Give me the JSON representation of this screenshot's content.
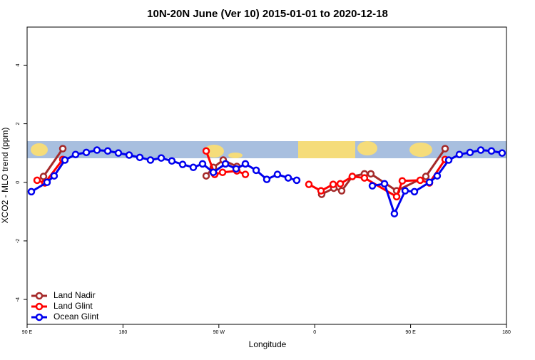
{
  "chart_data": {
    "type": "line",
    "title": "10N-20N June (Ver 10)   2015-01-01 to 2020-12-18",
    "x_label": "Longitude",
    "y_label": "XCO2 - MLO trend (ppm)",
    "xlim": [
      90,
      540
    ],
    "xticks": [
      {
        "value": 90,
        "label": "90 E"
      },
      180,
      {
        "value": 270,
        "label": "90 W"
      },
      {
        "value": 360,
        "label": "0"
      },
      {
        "value": 450,
        "label": "90 E"
      },
      {
        "value": 540,
        "label": "180"
      }
    ],
    "ylim": [
      -4.85,
      5.3
    ],
    "yticks": [
      -4,
      -2,
      0,
      2,
      4
    ],
    "legend": "bottomleft",
    "series": [
      {
        "name": "Land Nadir",
        "color": "#a52a2a",
        "x": [
          105.4,
          123.5,
          null,
          258.1,
          264.8,
          274.1,
          286.9,
          null,
          366.5,
          377.9,
          385.3,
          395.3,
          406.7,
          412.7,
          436.9,
          464.3,
          482.4
        ],
        "values": [
          0.2,
          1.15,
          null,
          0.22,
          0.51,
          0.76,
          0.54,
          null,
          -0.41,
          -0.2,
          -0.29,
          0.2,
          0.29,
          0.29,
          -0.29,
          0.2,
          1.15
        ]
      },
      {
        "name": "Land Glint",
        "color": "#ff0000",
        "x": [
          99.4,
          106.7,
          123.5,
          null,
          258.1,
          266.1,
          273.5,
          286.9,
          294.9,
          null,
          354.5,
          365.9,
          377.3,
          384.0,
          395.3,
          406.7,
          436.9,
          442.2,
          459.0,
          467.7,
          482.4
        ],
        "values": [
          0.07,
          -0.02,
          0.78,
          null,
          1.07,
          0.27,
          0.34,
          0.39,
          0.27,
          null,
          -0.07,
          -0.29,
          -0.07,
          -0.05,
          0.2,
          0.15,
          -0.49,
          0.05,
          0.07,
          -0.02,
          0.78
        ]
      },
      {
        "name": "Ocean Glint",
        "color": "#0000ee",
        "x": [
          94.0,
          108.7,
          115.4,
          125.5,
          135.5,
          145.6,
          155.6,
          165.7,
          175.7,
          185.8,
          195.8,
          205.8,
          215.9,
          225.9,
          236.0,
          246.0,
          254.7,
          264.8,
          276.2,
          286.2,
          294.9,
          305.0,
          315.0,
          325.0,
          335.1,
          343.1,
          null,
          414.1,
          425.5,
          434.8,
          444.9,
          453.6,
          467.7,
          475.0,
          485.8,
          495.8,
          505.8,
          515.9,
          525.9,
          535.9
        ],
        "values": [
          -0.32,
          0,
          0.22,
          0.76,
          0.95,
          1.02,
          1.1,
          1.07,
          1.0,
          0.93,
          0.85,
          0.76,
          0.83,
          0.73,
          0.61,
          0.51,
          0.63,
          0.34,
          0.63,
          0.46,
          0.63,
          0.41,
          0.1,
          0.27,
          0.15,
          0.07,
          null,
          -0.12,
          -0.05,
          -1.07,
          -0.29,
          -0.32,
          0,
          0.22,
          0.76,
          0.95,
          1.02,
          1.1,
          1.07,
          1.0
        ]
      }
    ]
  }
}
